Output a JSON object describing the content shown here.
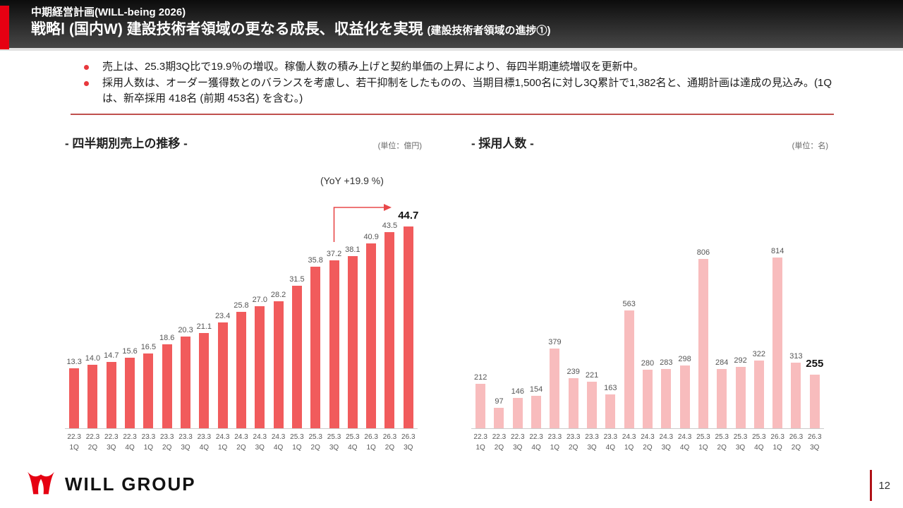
{
  "header": {
    "subtitle": "中期経営計画(WILL-being 2026)",
    "title": "戦略Ⅰ (国内W) 建設技術者領域の更なる成長、収益化を実現",
    "title_note": "(建設技術者領域の進捗①)"
  },
  "summary": {
    "bullets": [
      "売上は、25.3期3Q比で19.9％の増収。稼働人数の積み上げと契約単価の上昇により、毎四半期連続増収を更新中。",
      "採用人数は、オーダー獲得数とのバランスを考慮し、若干抑制をしたものの、当期目標1,500名に対し3Q累計で1,382名と、通期計画は達成の見込み。(1Qは、新卒採用 418名 (前期 453名) を含む。)"
    ]
  },
  "chart_data": [
    {
      "type": "bar",
      "title": "- 四半期別売上の推移 -",
      "unit": "(単位：億円)",
      "categories": [
        "22.3 1Q",
        "22.3 2Q",
        "22.3 3Q",
        "22.3 4Q",
        "23.3 1Q",
        "23.3 2Q",
        "23.3 3Q",
        "23.3 4Q",
        "24.3 1Q",
        "24.3 2Q",
        "24.3 3Q",
        "24.3 4Q",
        "25.3 1Q",
        "25.3 2Q",
        "25.3 3Q",
        "25.3 4Q",
        "26.3 1Q",
        "26.3 2Q",
        "26.3 3Q"
      ],
      "values": [
        13.3,
        14.0,
        14.7,
        15.6,
        16.5,
        18.6,
        20.3,
        21.1,
        23.4,
        25.8,
        27.0,
        28.2,
        31.5,
        35.8,
        37.2,
        38.1,
        40.9,
        43.5,
        44.7
      ],
      "labels": [
        "13.3",
        "14.0",
        "14.7",
        "15.6",
        "16.5",
        "18.6",
        "20.3",
        "21.1",
        "23.4",
        "25.8",
        "27.0",
        "28.2",
        "31.5",
        "35.8",
        "37.2",
        "38.1",
        "40.9",
        "43.5",
        "44.7"
      ],
      "annotation": "(YoY +19.9 %)",
      "emphasize_last": true,
      "bar_color": "#f15b5c",
      "ylim": [
        0,
        45
      ],
      "grid": false,
      "legend": false
    },
    {
      "type": "bar",
      "title": "- 採用人数 -",
      "unit": "(単位：名)",
      "categories": [
        "22.3 1Q",
        "22.3 2Q",
        "22.3 3Q",
        "22.3 4Q",
        "23.3 1Q",
        "23.3 2Q",
        "23.3 3Q",
        "23.3 4Q",
        "24.3 1Q",
        "24.3 2Q",
        "24.3 3Q",
        "24.3 4Q",
        "25.3 1Q",
        "25.3 2Q",
        "25.3 3Q",
        "25.3 4Q",
        "26.3 1Q",
        "26.3 2Q",
        "26.3 3Q"
      ],
      "values": [
        212,
        97,
        146,
        154,
        379,
        239,
        221,
        163,
        563,
        280,
        283,
        298,
        806,
        284,
        292,
        322,
        814,
        313,
        255
      ],
      "labels": [
        "212",
        "97",
        "146",
        "154",
        "379",
        "239",
        "221",
        "163",
        "563",
        "280",
        "283",
        "298",
        "806",
        "284",
        "292",
        "322",
        "814",
        "313",
        "255"
      ],
      "emphasize_last": true,
      "bar_color": "#f8bcbd",
      "ylim": [
        0,
        850
      ],
      "grid": false,
      "legend": false
    }
  ],
  "footer": {
    "logo_text": "WILL GROUP",
    "page_number": "12"
  },
  "colors": {
    "accent_red": "#e60012",
    "bullet_red": "#e8383d",
    "separator_red": "#c0504d",
    "arrow_red": "#e8484a",
    "sales_bar": "#f15b5c",
    "hires_bar": "#f8bcbd"
  }
}
